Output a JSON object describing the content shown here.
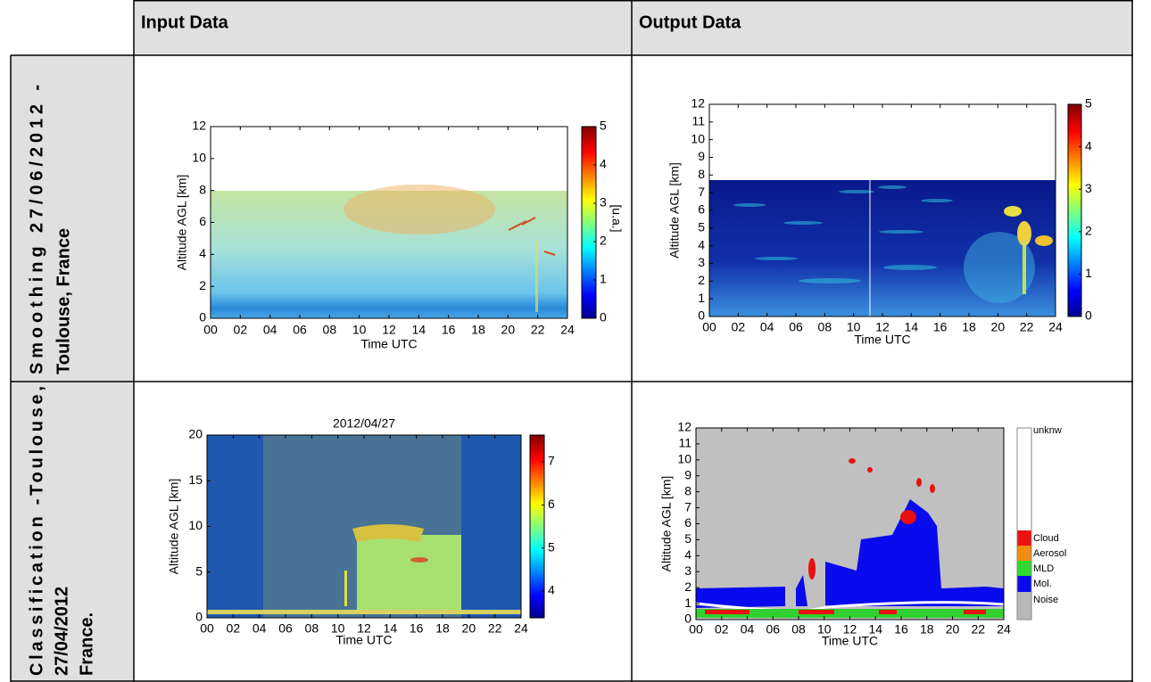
{
  "table": {
    "columns": [
      "Input Data",
      "Output Data"
    ],
    "rows": [
      {
        "label": [
          "Smoothing 27/06/2012 -",
          "Toulouse, France"
        ],
        "cells": [
          {
            "y_label": "Altitude AGL [km]",
            "x_label": "Time UTC",
            "x_ticks": [
              "00",
              "02",
              "04",
              "06",
              "08",
              "10",
              "12",
              "14",
              "16",
              "18",
              "20",
              "22",
              "24"
            ],
            "y_ticks": [
              0,
              2,
              4,
              6,
              8,
              10,
              12
            ],
            "colorbar_ticks": [
              0,
              1,
              2,
              3,
              4,
              5
            ],
            "colorbar_label": "[u.a.]"
          },
          {
            "y_label": "Altitude AGL [km]",
            "x_label": "Time UTC",
            "x_ticks": [
              "00",
              "02",
              "04",
              "06",
              "08",
              "10",
              "12",
              "14",
              "16",
              "18",
              "20",
              "22",
              "24"
            ],
            "y_ticks": [
              0,
              1,
              2,
              3,
              4,
              5,
              6,
              7,
              8,
              9,
              10,
              11,
              12
            ],
            "colorbar_ticks": [
              0,
              1,
              2,
              3,
              4,
              5
            ]
          }
        ]
      },
      {
        "label": [
          "Classification -Toulouse,",
          "27/04/2012",
          "France."
        ],
        "cells": [
          {
            "title": "2012/04/27",
            "y_label": "Altitude AGL [km]",
            "x_label": "Time UTC",
            "x_ticks": [
              "00",
              "02",
              "04",
              "06",
              "08",
              "10",
              "12",
              "14",
              "16",
              "18",
              "20",
              "22",
              "24"
            ],
            "y_ticks": [
              0,
              5,
              10,
              15,
              20
            ],
            "colorbar_ticks": [
              4,
              5,
              6,
              7
            ]
          },
          {
            "y_label": "Altitude AGL [km]",
            "x_label": "Time UTC",
            "x_ticks": [
              "00",
              "02",
              "04",
              "06",
              "08",
              "10",
              "12",
              "14",
              "16",
              "18",
              "20",
              "22",
              "24"
            ],
            "y_ticks": [
              0,
              1,
              2,
              3,
              4,
              5,
              6,
              7,
              8,
              9,
              10,
              11,
              12
            ],
            "legend": [
              "unknw",
              "Cloud",
              "Aerosol",
              "MLD",
              "Mol.",
              "Noise"
            ]
          }
        ]
      }
    ]
  }
}
